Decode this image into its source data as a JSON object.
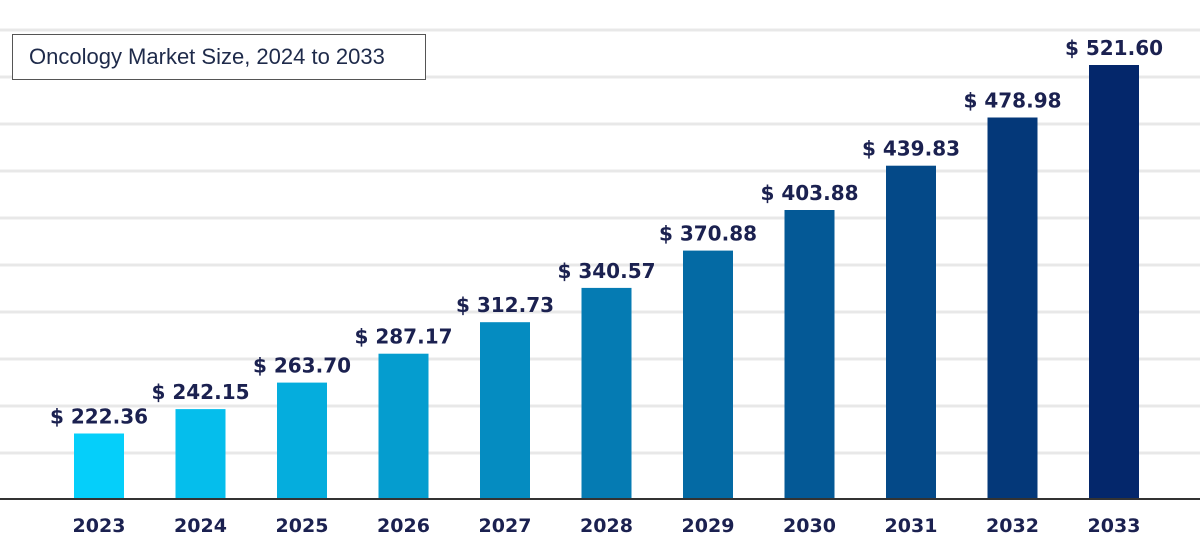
{
  "colors": {
    "gradient_start": "#05CFFA",
    "gradient_end": "#04276B",
    "gridline": "#E8E8E8",
    "axis": "#333333",
    "label": "#1B2150"
  },
  "chart_data": {
    "type": "bar",
    "title": "Oncology Market Size, 2024 to 2033",
    "xlabel": "",
    "ylabel": "",
    "categories": [
      "2023",
      "2024",
      "2025",
      "2026",
      "2027",
      "2028",
      "2029",
      "2030",
      "2031",
      "2032",
      "2033"
    ],
    "values": [
      222.36,
      242.15,
      263.7,
      287.17,
      312.73,
      340.57,
      370.88,
      403.88,
      439.83,
      478.98,
      521.6
    ],
    "data_labels": [
      "$ 222.36",
      "$ 242.15",
      "$ 263.70",
      "$ 287.17",
      "$ 312.73",
      "$ 340.57",
      "$ 370.88",
      "$ 403.88",
      "$ 439.83",
      "$ 478.98",
      "$ 521.60"
    ],
    "ylim": [
      170,
      540
    ],
    "grid": true,
    "legend": "none"
  }
}
